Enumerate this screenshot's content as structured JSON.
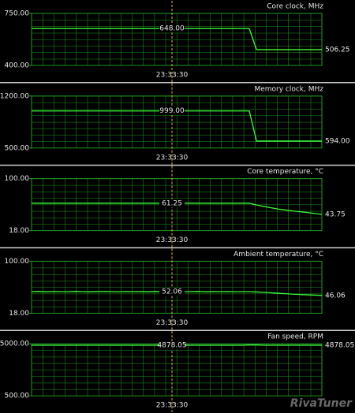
{
  "chart_data": [
    {
      "type": "line",
      "title": "Core clock, MHz",
      "color": "#3cff3c",
      "ylim": [
        400,
        750
      ],
      "yticks": [
        {
          "value": 750,
          "label": "750.00"
        },
        {
          "value": 400,
          "label": "400.00"
        }
      ],
      "values": [
        648,
        648,
        648,
        648,
        648,
        648,
        648,
        648,
        648,
        648,
        648,
        648,
        648,
        648,
        648,
        648,
        648,
        648,
        648,
        648,
        648,
        648,
        648,
        648,
        648,
        648,
        648,
        648,
        648,
        648,
        648,
        506.25,
        506.25,
        506.25,
        506.25,
        506.25,
        506.25,
        506.25,
        506.25,
        506.25,
        506.25
      ],
      "cursor": {
        "time": "23:33:30",
        "value": 648,
        "label": "648.00"
      },
      "current": {
        "value": 506.25,
        "label": "506.25"
      }
    },
    {
      "type": "line",
      "title": "Memory clock, MHz",
      "color": "#3cff3c",
      "ylim": [
        500,
        1200
      ],
      "yticks": [
        {
          "value": 1200,
          "label": "1200.00"
        },
        {
          "value": 500,
          "label": "500.00"
        }
      ],
      "values": [
        999,
        999,
        999,
        999,
        999,
        999,
        999,
        999,
        999,
        999,
        999,
        999,
        999,
        999,
        999,
        999,
        999,
        999,
        999,
        999,
        999,
        999,
        999,
        999,
        999,
        999,
        999,
        999,
        999,
        999,
        999,
        594,
        594,
        594,
        594,
        594,
        594,
        594,
        594,
        594,
        594
      ],
      "cursor": {
        "time": "23:33:30",
        "value": 999,
        "label": "999.00"
      },
      "current": {
        "value": 594,
        "label": "594.00"
      }
    },
    {
      "type": "line",
      "title": "Core temperature, °C",
      "color": "#3cff3c",
      "ylim": [
        18,
        100
      ],
      "yticks": [
        {
          "value": 100,
          "label": "100.00"
        },
        {
          "value": 18,
          "label": "18.00"
        }
      ],
      "values": [
        61.25,
        61.25,
        61.25,
        61.25,
        61.25,
        61.25,
        61.25,
        61.25,
        61.25,
        61.25,
        61.25,
        61.25,
        61.25,
        61.25,
        61.25,
        61.25,
        61.25,
        61.25,
        61.25,
        61.25,
        61.25,
        61.25,
        61.25,
        61.25,
        61.25,
        61.25,
        61.25,
        61.25,
        61.25,
        61.25,
        61.25,
        58.5,
        56,
        54,
        52,
        50.5,
        49,
        47.8,
        46.5,
        45,
        43.75
      ],
      "cursor": {
        "time": "23:33:30",
        "value": 61.25,
        "label": "61.25"
      },
      "current": {
        "value": 43.75,
        "label": "43.75"
      }
    },
    {
      "type": "line",
      "title": "Ambient temperature, °C",
      "color": "#3cff3c",
      "ylim": [
        18,
        100
      ],
      "yticks": [
        {
          "value": 100,
          "label": "100.00"
        },
        {
          "value": 18,
          "label": "18.00"
        }
      ],
      "values": [
        52,
        52.3,
        51.8,
        52.2,
        52,
        51.9,
        52.4,
        52,
        51.8,
        52.1,
        52.3,
        52,
        51.9,
        52.2,
        52,
        52.1,
        51.8,
        52.3,
        52,
        52.06,
        52.2,
        51.9,
        52,
        52.3,
        51.8,
        52.1,
        52,
        52.2,
        51.9,
        52,
        52,
        51.5,
        51,
        50.2,
        49.5,
        48.8,
        48,
        47.5,
        47,
        46.5,
        46.06
      ],
      "cursor": {
        "time": "23:33:30",
        "value": 52.06,
        "label": "52.06"
      },
      "current": {
        "value": 46.06,
        "label": "46.06"
      }
    },
    {
      "type": "line",
      "title": "Fan speed, RPM",
      "color": "#3cff3c",
      "ylim": [
        500,
        5000
      ],
      "yticks": [
        {
          "value": 5000,
          "label": "5000.00"
        },
        {
          "value": 500,
          "label": "500.00"
        }
      ],
      "values": [
        4878.05,
        4878.05,
        4878.05,
        4878.05,
        4878.05,
        4878.05,
        4878.05,
        4878.05,
        4878.05,
        4878.05,
        4878.05,
        4878.05,
        4878.05,
        4878.05,
        4878.05,
        4878.05,
        4878.05,
        4878.05,
        4878.05,
        4878.05,
        4878.05,
        4878.05,
        4878.05,
        4878.05,
        4878.05,
        4878.05,
        4878.05,
        4878.05,
        4878.05,
        4878.05,
        4900,
        4900,
        4878.05,
        4878.05,
        4878.05,
        4878.05,
        4878.05,
        4878.05,
        4878.05,
        4878.05,
        4878.05
      ],
      "cursor": {
        "time": "23:33:30",
        "value": 4878.05,
        "label": "4878.05"
      },
      "current": {
        "value": 4878.05,
        "label": "4878.05"
      }
    }
  ],
  "watermark": "RivaTuner"
}
